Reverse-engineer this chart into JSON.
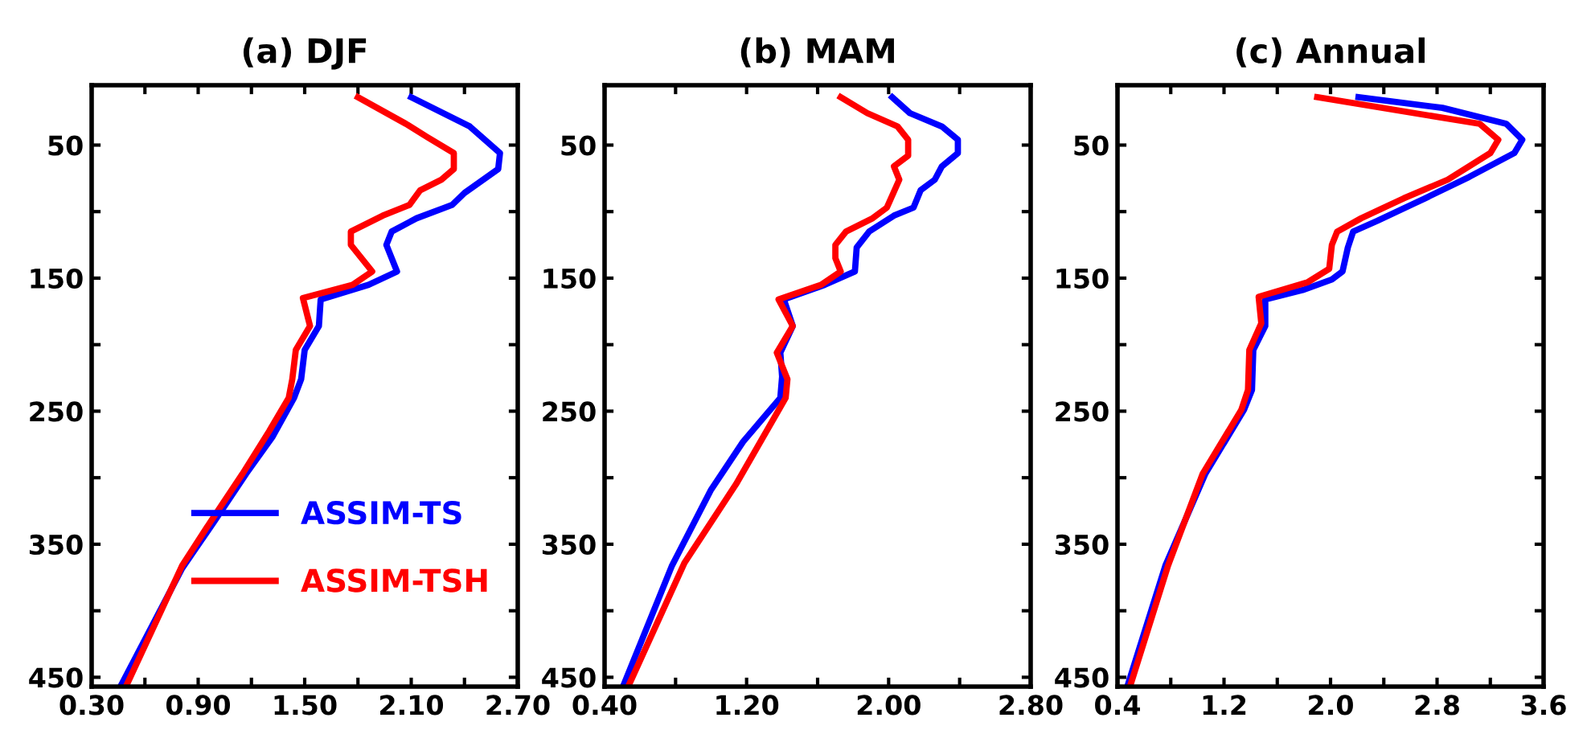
{
  "chart_data": [
    {
      "type": "line",
      "title": "(a) DJF",
      "xlim": [
        0.3,
        2.7
      ],
      "ylim": [
        457,
        5
      ],
      "xticks": [
        {
          "value": 0.3,
          "label": "0.30"
        },
        {
          "value": 0.6,
          "label": null
        },
        {
          "value": 0.9,
          "label": "0.90"
        },
        {
          "value": 1.2,
          "label": null
        },
        {
          "value": 1.5,
          "label": "1.50"
        },
        {
          "value": 1.8,
          "label": null
        },
        {
          "value": 2.1,
          "label": "2.10"
        },
        {
          "value": 2.4,
          "label": null
        },
        {
          "value": 2.7,
          "label": "2.70"
        }
      ],
      "yticks": [
        50,
        {
          "value": 100,
          "label": null
        },
        150,
        {
          "value": 200,
          "label": null
        },
        250,
        {
          "value": 300,
          "label": null
        },
        350,
        {
          "value": 400,
          "label": null
        },
        450
      ],
      "grid": false,
      "legend": "lower right",
      "line_style": "solid",
      "marker": "none",
      "series": [
        {
          "name": "ASSIM-TS",
          "color": "#0000ff",
          "x": [
            2.1,
            2.43,
            2.6,
            2.59,
            2.4,
            2.33,
            2.13,
            1.99,
            1.96,
            2.02,
            1.86,
            1.59,
            1.58,
            1.5,
            1.48,
            1.44,
            1.32,
            1.17,
            0.99,
            0.81,
            0.47
          ],
          "values": [
            14,
            36,
            56,
            68,
            86,
            95,
            105,
            115,
            125,
            145,
            155,
            166,
            186,
            204,
            226,
            240,
            269,
            297,
            333,
            368,
            455
          ]
        },
        {
          "name": "ASSIM-TSH",
          "color": "#ff0000",
          "x": [
            1.8,
            2.07,
            2.19,
            2.34,
            2.34,
            2.27,
            2.15,
            2.09,
            1.94,
            1.76,
            1.76,
            1.88,
            1.77,
            1.49,
            1.53,
            1.45,
            1.43,
            1.41,
            1.3,
            1.15,
            0.97,
            0.81,
            0.5
          ],
          "values": [
            14,
            34,
            44,
            56,
            68,
            76,
            84,
            95,
            103,
            115,
            125,
            145,
            155,
            165,
            186,
            204,
            226,
            240,
            265,
            297,
            333,
            366,
            455
          ]
        }
      ]
    },
    {
      "type": "line",
      "title": "(b) MAM",
      "xlim": [
        0.4,
        2.8
      ],
      "ylim": [
        457,
        5
      ],
      "xticks": [
        {
          "value": 0.4,
          "label": "0.40"
        },
        {
          "value": 0.8,
          "label": null
        },
        {
          "value": 1.2,
          "label": "1.20"
        },
        {
          "value": 1.6,
          "label": null
        },
        {
          "value": 2.0,
          "label": "2.00"
        },
        {
          "value": 2.4,
          "label": null
        },
        {
          "value": 2.8,
          "label": "2.80"
        }
      ],
      "yticks": [
        50,
        {
          "value": 100,
          "label": null
        },
        150,
        {
          "value": 200,
          "label": null
        },
        250,
        {
          "value": 300,
          "label": null
        },
        350,
        {
          "value": 400,
          "label": null
        },
        450
      ],
      "grid": false,
      "line_style": "solid",
      "marker": "none",
      "series": [
        {
          "color": "#0000ff",
          "x": [
            2.02,
            2.12,
            2.3,
            2.39,
            2.39,
            2.3,
            2.26,
            2.18,
            2.14,
            2.03,
            1.89,
            1.82,
            1.81,
            1.64,
            1.41,
            1.46,
            1.39,
            1.4,
            1.39,
            1.18,
            1.0,
            0.78,
            0.51
          ],
          "values": [
            14,
            26,
            36,
            46,
            56,
            66,
            76,
            84,
            97,
            103,
            115,
            127,
            145,
            155,
            166,
            186,
            206,
            224,
            240,
            273,
            309,
            366,
            455
          ]
        },
        {
          "color": "#ff0000",
          "x": [
            1.73,
            1.88,
            2.05,
            2.11,
            2.11,
            2.03,
            2.06,
            1.99,
            1.91,
            1.76,
            1.7,
            1.7,
            1.73,
            1.62,
            1.38,
            1.46,
            1.37,
            1.43,
            1.42,
            1.14,
            0.85,
            0.54
          ],
          "values": [
            14,
            26,
            36,
            46,
            58,
            66,
            76,
            97,
            105,
            115,
            125,
            135,
            145,
            155,
            166,
            186,
            206,
            226,
            240,
            305,
            364,
            455
          ]
        }
      ]
    },
    {
      "type": "line",
      "title": "(c) Annual",
      "xlim": [
        0.4,
        3.6
      ],
      "ylim": [
        457,
        5
      ],
      "xticks": [
        0.4,
        {
          "value": 0.8,
          "label": null
        },
        1.2,
        {
          "value": 1.6,
          "label": null
        },
        {
          "value": 2.0,
          "label": "2.0"
        },
        {
          "value": 2.4,
          "label": null
        },
        2.8,
        {
          "value": 3.2,
          "label": null
        },
        3.6
      ],
      "yticks": [
        50,
        {
          "value": 100,
          "label": null
        },
        150,
        {
          "value": 200,
          "label": null
        },
        250,
        {
          "value": 300,
          "label": null
        },
        350,
        {
          "value": 400,
          "label": null
        },
        450
      ],
      "grid": false,
      "line_style": "solid",
      "marker": "none",
      "series": [
        {
          "color": "#0000ff",
          "x": [
            2.21,
            2.84,
            3.32,
            3.44,
            3.38,
            3.04,
            2.71,
            2.35,
            2.17,
            2.13,
            2.09,
            2.01,
            1.79,
            1.51,
            1.51,
            1.42,
            1.41,
            1.35,
            1.06,
            0.76,
            0.48
          ],
          "values": [
            14,
            22,
            34,
            46,
            56,
            74,
            90,
            107,
            115,
            127,
            145,
            151,
            159,
            166,
            186,
            204,
            234,
            249,
            297,
            366,
            455
          ]
        },
        {
          "color": "#ff0000",
          "x": [
            1.9,
            3.12,
            3.26,
            3.2,
            2.88,
            2.55,
            2.23,
            2.05,
            2.01,
            1.99,
            1.83,
            1.46,
            1.48,
            1.39,
            1.38,
            1.33,
            1.04,
            0.78,
            0.5
          ],
          "values": [
            14,
            34,
            46,
            56,
            76,
            90,
            105,
            115,
            125,
            143,
            153,
            164,
            184,
            204,
            234,
            249,
            297,
            366,
            455
          ]
        }
      ]
    }
  ]
}
